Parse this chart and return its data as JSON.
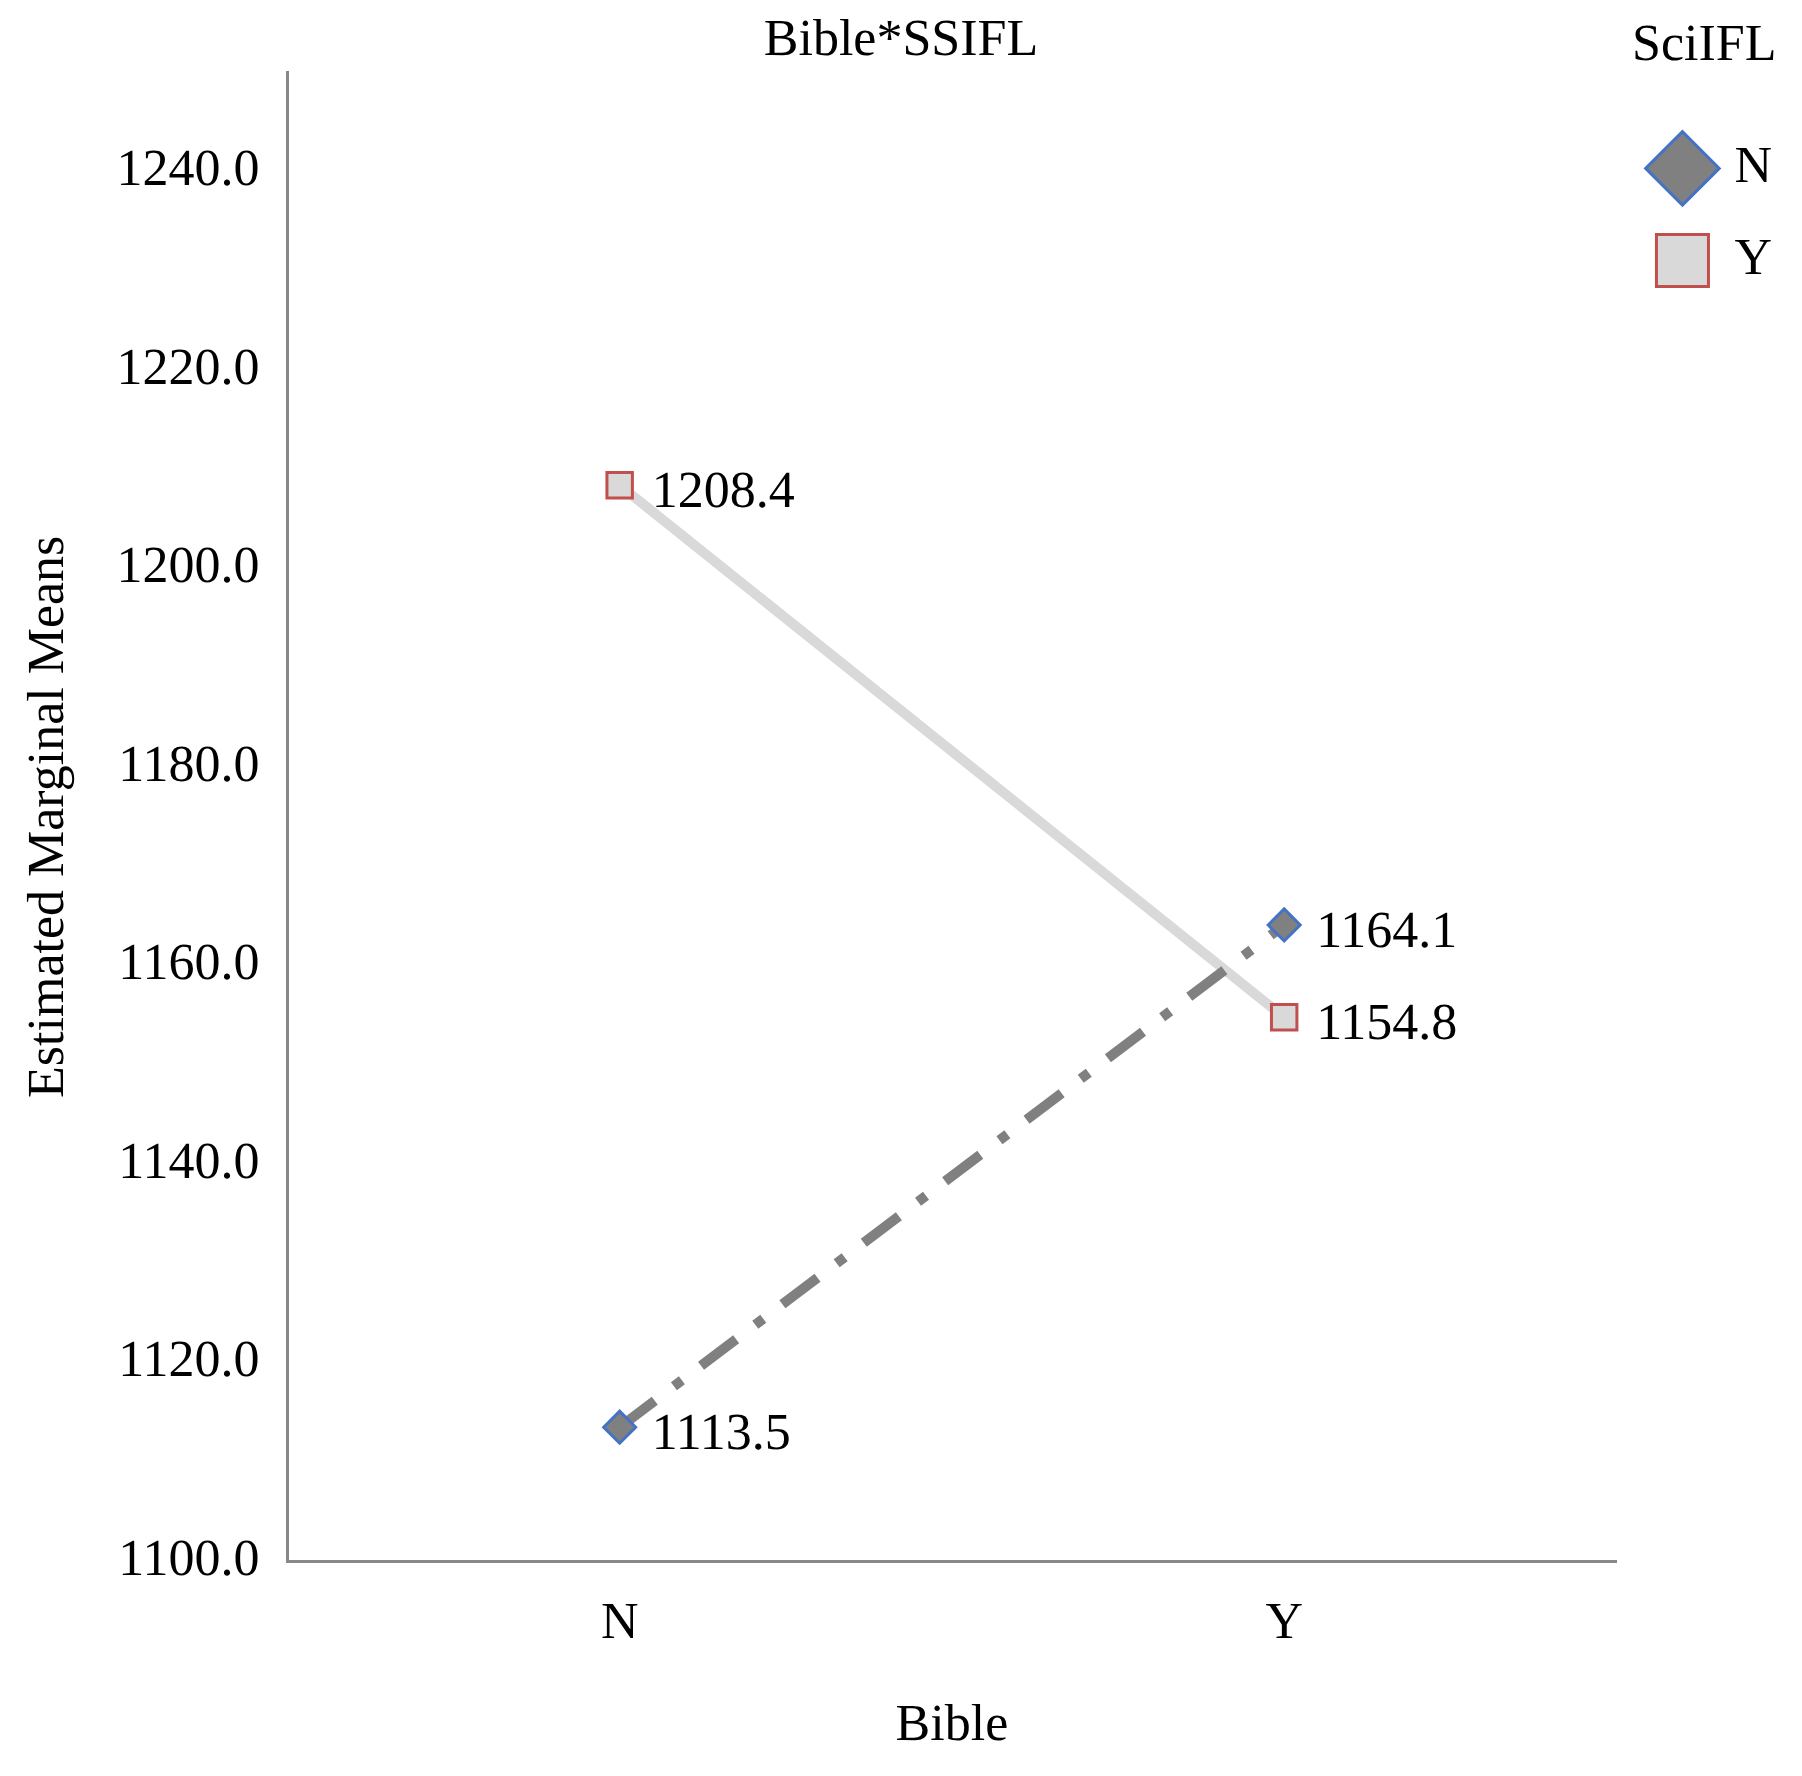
{
  "chart_data": {
    "type": "line",
    "title": "Bible*SSIFL",
    "xlabel": "Bible",
    "ylabel": "Estimated Marginal Means",
    "legend_title": "SciIFL",
    "legend": "top right",
    "grid": false,
    "data_labels": true,
    "categories": [
      "N",
      "Y"
    ],
    "ylim": [
      1100,
      1250
    ],
    "yticks": [
      {
        "value": 1100,
        "label": "1100.0"
      },
      {
        "value": 1120,
        "label": "1120.0"
      },
      {
        "value": 1140,
        "label": "1140.0"
      },
      {
        "value": 1160,
        "label": "1160.0"
      },
      {
        "value": 1180,
        "label": "1180.0"
      },
      {
        "value": 1200,
        "label": "1200.0"
      },
      {
        "value": 1220,
        "label": "1220.0"
      },
      {
        "value": 1240,
        "label": "1240.0"
      }
    ],
    "series": [
      {
        "name": "N",
        "color": "#808080",
        "values": [
          1113.5,
          1164.1
        ],
        "marker": "diamond",
        "line_style": "dashed"
      },
      {
        "name": "Y",
        "color": "#d9d9d9",
        "values": [
          1208.4,
          1154.8
        ],
        "marker": "square",
        "line_style": "solid"
      }
    ]
  }
}
